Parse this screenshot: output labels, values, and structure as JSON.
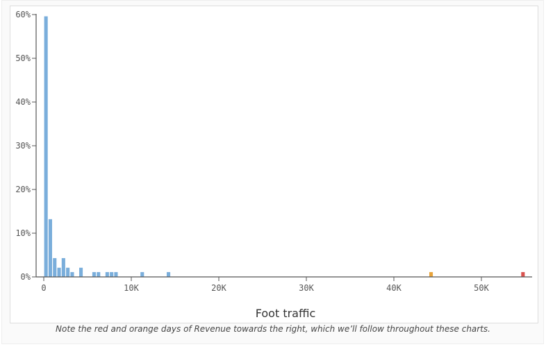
{
  "chart_data": {
    "type": "bar",
    "xlabel": "Foot traffic",
    "ylabel": "",
    "bin_width": 500,
    "xlim": [
      0,
      56000
    ],
    "ylim": [
      0,
      60
    ],
    "x_ticks": [
      0,
      10000,
      20000,
      30000,
      40000,
      50000
    ],
    "x_tick_labels": [
      "0",
      "10K",
      "20K",
      "30K",
      "40K",
      "50K"
    ],
    "y_ticks": [
      0,
      10,
      20,
      30,
      40,
      50,
      60
    ],
    "y_tick_labels": [
      "0%",
      "10%",
      "20%",
      "30%",
      "40%",
      "50%",
      "60%"
    ],
    "grid": false,
    "default_color": "#7aaedb",
    "bins": [
      {
        "x": 0,
        "value": 59.6
      },
      {
        "x": 500,
        "value": 13.2
      },
      {
        "x": 1000,
        "value": 4.3
      },
      {
        "x": 1500,
        "value": 2.1
      },
      {
        "x": 2000,
        "value": 4.3
      },
      {
        "x": 2500,
        "value": 2.1
      },
      {
        "x": 3000,
        "value": 1.1
      },
      {
        "x": 4000,
        "value": 2.1
      },
      {
        "x": 5500,
        "value": 1.1
      },
      {
        "x": 6000,
        "value": 1.1
      },
      {
        "x": 7000,
        "value": 1.1
      },
      {
        "x": 7500,
        "value": 1.1
      },
      {
        "x": 8000,
        "value": 1.1
      },
      {
        "x": 11000,
        "value": 1.1
      },
      {
        "x": 14000,
        "value": 1.1
      },
      {
        "x": 44000,
        "value": 1.1,
        "color": "#e8a33a"
      },
      {
        "x": 54500,
        "value": 1.1,
        "color": "#d9534f"
      }
    ]
  },
  "caption": "Note the red and orange days of Revenue towards the right, which we’ll follow throughout these charts."
}
